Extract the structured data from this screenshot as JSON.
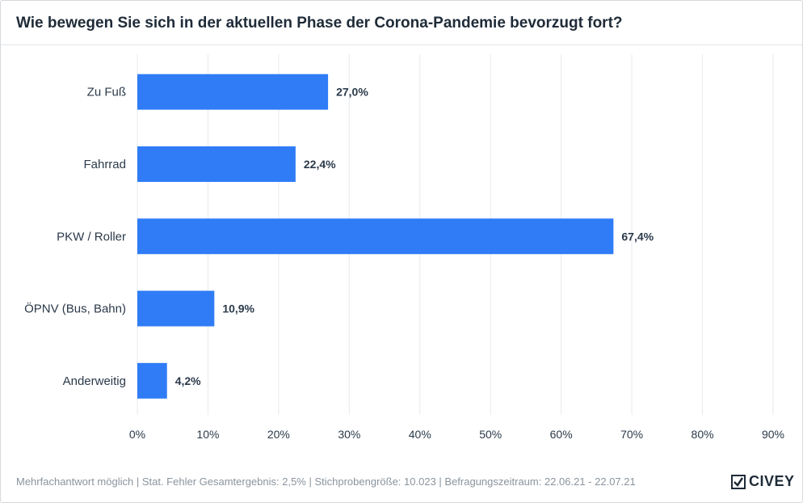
{
  "title": "Wie bewegen Sie sich in der aktuellen Phase der Corona-Pandemie bevorzugt fort?",
  "footer": "Mehrfachantwort möglich | Stat. Fehler Gesamtergebnis: 2,5% | Stichprobengröße: 10.023 | Befragungszeitraum: 22.06.21 - 22.07.21",
  "logo": {
    "text": "CIVEY",
    "icon": "civey-logo-icon"
  },
  "colors": {
    "bar": "#2f7cf6",
    "grid": "#e6e9ec",
    "label": "#2b3a4a",
    "tick": "#2b3a4a"
  },
  "chart_data": {
    "type": "bar",
    "orientation": "horizontal",
    "categories": [
      "Zu Fuß",
      "Fahrrad",
      "PKW / Roller",
      "ÖPNV (Bus, Bahn)",
      "Anderweitig"
    ],
    "values": [
      27.0,
      22.4,
      67.4,
      10.9,
      4.2
    ],
    "value_labels": [
      "27,0%",
      "22,4%",
      "67,4%",
      "10,9%",
      "4,2%"
    ],
    "xlim": [
      0,
      90
    ],
    "xticks": [
      0,
      10,
      20,
      30,
      40,
      50,
      60,
      70,
      80,
      90
    ],
    "xtick_labels": [
      "0%",
      "10%",
      "20%",
      "30%",
      "40%",
      "50%",
      "60%",
      "70%",
      "80%",
      "90%"
    ],
    "grid": true
  }
}
